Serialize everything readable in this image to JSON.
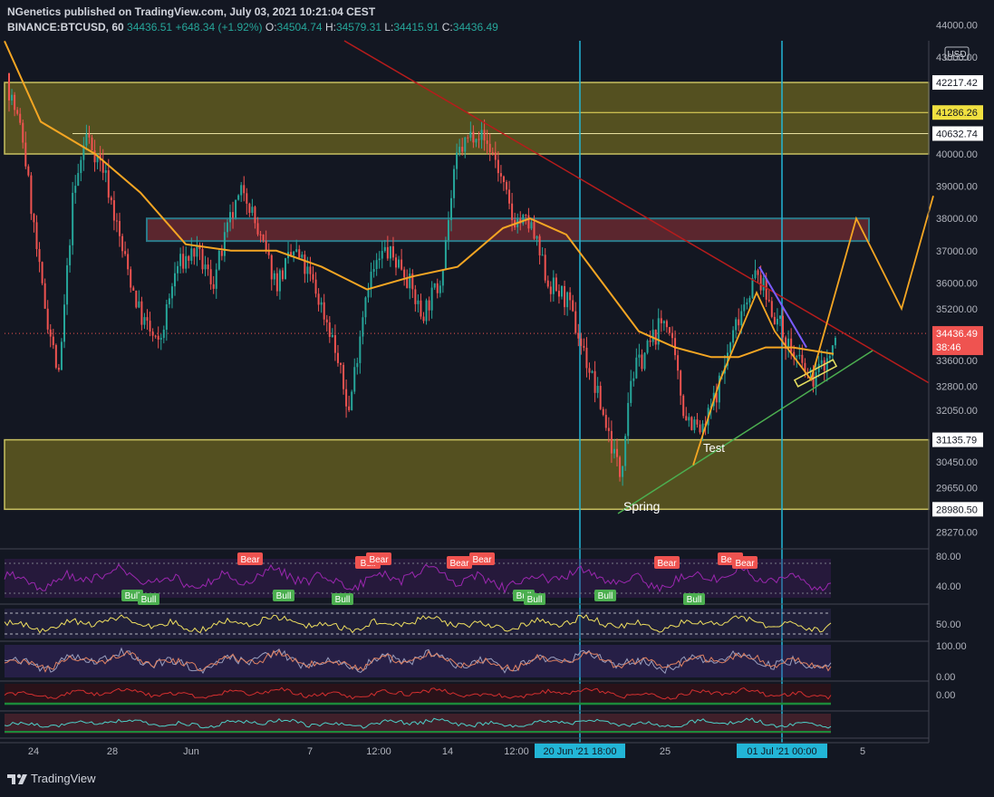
{
  "header": {
    "publisher": "NGenetics published on TradingView.com, July 03, 2021 10:21:04 CEST",
    "symbol": "BINANCE:BTCUSD, 60",
    "last": "34436.51",
    "change": "+648.34 (+1.92%)",
    "o_label": "O:",
    "o_value": "34504.74",
    "h_label": "H:",
    "h_value": "34579.31",
    "l_label": "L:",
    "l_value": "34415.91",
    "c_label": "C:",
    "c_value": "34436.49"
  },
  "footer": {
    "brand": "TradingView"
  },
  "colors": {
    "background": "#131722",
    "up": "#26a69a",
    "down": "#ef5350",
    "ma": "#f5a623",
    "zone_yellow": "#6b6420",
    "zone_red": "#6e2a32",
    "trend_red": "#b71c1c",
    "trend_green": "#4caf50",
    "vline": "#22b5d6",
    "rsi": "#9c27b0"
  },
  "chart_data": {
    "type": "candlestick",
    "currency": "USD",
    "yaxis_ticks": [
      "44000.00",
      "43000.00",
      "40000.00",
      "39000.00",
      "38000.00",
      "37000.00",
      "36000.00",
      "35200.00",
      "33600.00",
      "32800.00",
      "32050.00",
      "30450.00",
      "29650.00",
      "28270.00"
    ],
    "price_labels": [
      "42217.42",
      "41286.26",
      "40632.74",
      "31135.79",
      "28980.50"
    ],
    "last_price": "34436.49",
    "countdown": "38:46",
    "xaxis_ticks": [
      "24",
      "28",
      "Jun",
      "7",
      "12:00",
      "14",
      "12:00",
      "25",
      "5"
    ],
    "vline_labels": [
      "20 Jun '21  18:00",
      "01 Jul '21  00:00"
    ],
    "annotations": [
      "Spring",
      "Test"
    ],
    "signal_labels_top": [
      "Bear",
      "Bull",
      "Bear",
      "Bear",
      "Bear",
      "Bear",
      "Bear",
      "Bear"
    ],
    "signal_labels_bottom": [
      "Bull",
      "Bull",
      "Bull",
      "Bull",
      "Bull",
      "Bull",
      "Bull",
      "Bull"
    ],
    "zones": [
      {
        "type": "yellow",
        "from": 40000,
        "to": 42217.42
      },
      {
        "type": "red",
        "from": 37300,
        "to": 38000
      },
      {
        "type": "yellow",
        "from": 28980.5,
        "to": 31135.79
      }
    ],
    "price_path": [
      [
        0,
        42500
      ],
      [
        20,
        40500
      ],
      [
        40,
        36000
      ],
      [
        60,
        33000
      ],
      [
        75,
        38500
      ],
      [
        90,
        40600
      ],
      [
        110,
        39500
      ],
      [
        130,
        37000
      ],
      [
        150,
        35000
      ],
      [
        170,
        34000
      ],
      [
        190,
        36500
      ],
      [
        210,
        37000
      ],
      [
        230,
        36000
      ],
      [
        250,
        38000
      ],
      [
        265,
        39000
      ],
      [
        280,
        37500
      ],
      [
        300,
        36000
      ],
      [
        320,
        37000
      ],
      [
        340,
        36000
      ],
      [
        360,
        34500
      ],
      [
        380,
        32000
      ],
      [
        400,
        36000
      ],
      [
        420,
        37000
      ],
      [
        440,
        36500
      ],
      [
        460,
        35000
      ],
      [
        480,
        36000
      ],
      [
        500,
        40000
      ],
      [
        520,
        40800
      ],
      [
        540,
        40000
      ],
      [
        560,
        38000
      ],
      [
        580,
        37800
      ],
      [
        600,
        36000
      ],
      [
        620,
        35500
      ],
      [
        640,
        33800
      ],
      [
        660,
        32000
      ],
      [
        680,
        30000
      ],
      [
        690,
        33000
      ],
      [
        710,
        34000
      ],
      [
        730,
        35000
      ],
      [
        750,
        32000
      ],
      [
        770,
        31300
      ],
      [
        790,
        33000
      ],
      [
        810,
        35000
      ],
      [
        830,
        36300
      ],
      [
        850,
        35000
      ],
      [
        870,
        33800
      ],
      [
        890,
        33000
      ],
      [
        910,
        33700
      ],
      [
        920,
        34436
      ]
    ],
    "ma_path": [
      [
        0,
        43500
      ],
      [
        40,
        41000
      ],
      [
        100,
        40000
      ],
      [
        150,
        38800
      ],
      [
        200,
        37200
      ],
      [
        250,
        37000
      ],
      [
        300,
        37000
      ],
      [
        350,
        36500
      ],
      [
        400,
        35800
      ],
      [
        450,
        36200
      ],
      [
        500,
        36500
      ],
      [
        550,
        37700
      ],
      [
        580,
        38000
      ],
      [
        620,
        37500
      ],
      [
        660,
        36000
      ],
      [
        700,
        34500
      ],
      [
        740,
        34000
      ],
      [
        780,
        33700
      ],
      [
        810,
        33700
      ],
      [
        840,
        34000
      ],
      [
        870,
        34000
      ],
      [
        915,
        33800
      ]
    ],
    "forecast_path": [
      [
        760,
        30350
      ],
      [
        790,
        33000
      ],
      [
        830,
        35700
      ],
      [
        850,
        34500
      ],
      [
        890,
        33000
      ],
      [
        940,
        38000
      ],
      [
        990,
        35200
      ],
      [
        1025,
        38700
      ]
    ],
    "rsi_ticks": [
      "80.00",
      "40.00"
    ],
    "osc1_ticks": [
      "50.00"
    ],
    "osc2_ticks": [
      "100.00",
      "0.00"
    ],
    "osc3_ticks": [
      "0.00"
    ]
  }
}
